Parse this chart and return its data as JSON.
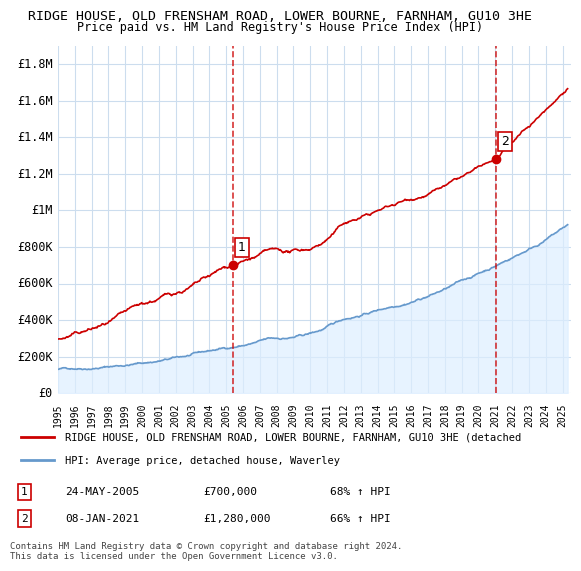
{
  "title": "RIDGE HOUSE, OLD FRENSHAM ROAD, LOWER BOURNE, FARNHAM, GU10 3HE",
  "subtitle": "Price paid vs. HM Land Registry's House Price Index (HPI)",
  "xlim": [
    1995.0,
    2025.5
  ],
  "ylim": [
    0,
    1900000
  ],
  "yticks": [
    0,
    200000,
    400000,
    600000,
    800000,
    1000000,
    1200000,
    1400000,
    1600000,
    1800000
  ],
  "ytick_labels": [
    "£0",
    "£200K",
    "£400K",
    "£600K",
    "£800K",
    "£1M",
    "£1.2M",
    "£1.4M",
    "£1.6M",
    "£1.8M"
  ],
  "xticks": [
    1995,
    1996,
    1997,
    1998,
    1999,
    2000,
    2001,
    2002,
    2003,
    2004,
    2005,
    2006,
    2007,
    2008,
    2009,
    2010,
    2011,
    2012,
    2013,
    2014,
    2015,
    2016,
    2017,
    2018,
    2019,
    2020,
    2021,
    2022,
    2023,
    2024,
    2025
  ],
  "red_line_color": "#cc0000",
  "blue_line_color": "#6699cc",
  "blue_fill_color": "#ddeeff",
  "vline_color": "#cc0000",
  "vline_style": "dashed",
  "sale1_x": 2005.388,
  "sale1_y": 700000,
  "sale2_x": 2021.019,
  "sale2_y": 1280000,
  "sale1_label": "1",
  "sale2_label": "2",
  "legend_red": "RIDGE HOUSE, OLD FRENSHAM ROAD, LOWER BOURNE, FARNHAM, GU10 3HE (detached",
  "legend_blue": "HPI: Average price, detached house, Waverley",
  "table_rows": [
    {
      "num": "1",
      "date": "24-MAY-2005",
      "price": "£700,000",
      "hpi": "68% ↑ HPI"
    },
    {
      "num": "2",
      "date": "08-JAN-2021",
      "price": "£1,280,000",
      "hpi": "66% ↑ HPI"
    }
  ],
  "footnote": "Contains HM Land Registry data © Crown copyright and database right 2024.\nThis data is licensed under the Open Government Licence v3.0.",
  "background_color": "#f0f4f8",
  "plot_bg_color": "#ffffff",
  "grid_color": "#ccddee"
}
